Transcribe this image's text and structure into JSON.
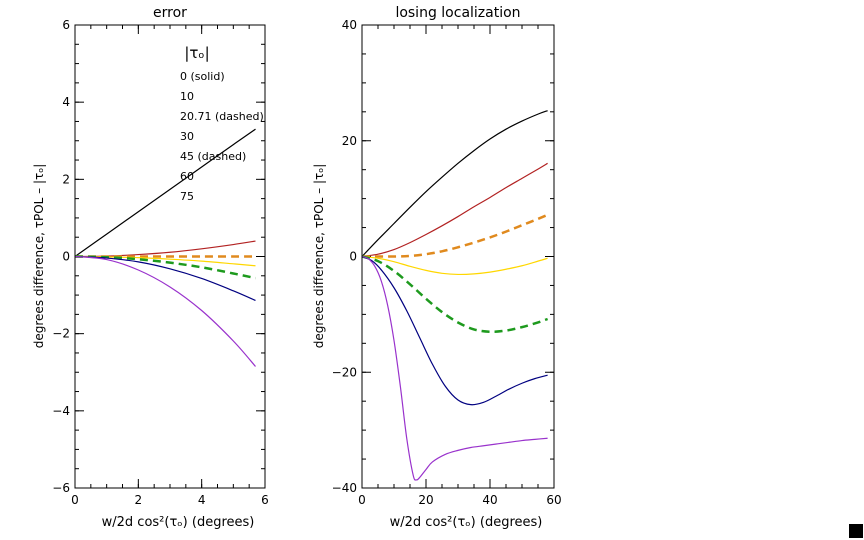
{
  "chart_data": [
    {
      "type": "line",
      "title": "error",
      "xlabel": "w/2d cos²(τₒ) (degrees)",
      "ylabel": "degrees difference, τPOL – |τₒ|",
      "xlim": [
        0,
        6
      ],
      "ylim": [
        -6,
        6
      ],
      "xticks": [
        "0",
        "2",
        "4",
        "6"
      ],
      "yticks": [
        "6",
        "4",
        "2",
        "0",
        "−2",
        "−4",
        "−6"
      ],
      "legend_title": "|τₒ|",
      "series": [
        {
          "name": "0 (solid)",
          "color": "#000000",
          "dashed": false,
          "x": [
            0,
            1,
            2,
            3,
            4,
            5,
            5.7
          ],
          "y": [
            0,
            0.58,
            1.16,
            1.74,
            2.32,
            2.9,
            3.3
          ]
        },
        {
          "name": "10",
          "color": "#b22222",
          "dashed": false,
          "x": [
            0,
            1,
            2,
            3,
            4,
            5,
            5.7
          ],
          "y": [
            0,
            0.01,
            0.05,
            0.11,
            0.2,
            0.31,
            0.4
          ]
        },
        {
          "name": "20.71 (dashed)",
          "color": "#e08a1e",
          "dashed": true,
          "x": [
            0,
            1,
            2,
            3,
            4,
            5,
            5.7
          ],
          "y": [
            0,
            0,
            0,
            0,
            0,
            0,
            0
          ]
        },
        {
          "name": "30",
          "color": "#ffd700",
          "dashed": false,
          "x": [
            0,
            1,
            2,
            3,
            4,
            5,
            5.7
          ],
          "y": [
            0,
            -0.01,
            -0.03,
            -0.07,
            -0.12,
            -0.19,
            -0.24
          ]
        },
        {
          "name": "45 (dashed)",
          "color": "#1e9a1e",
          "dashed": true,
          "x": [
            0,
            1,
            2,
            3,
            4,
            5,
            5.7
          ],
          "y": [
            0,
            -0.02,
            -0.07,
            -0.16,
            -0.28,
            -0.44,
            -0.56
          ]
        },
        {
          "name": "60",
          "color": "#000080",
          "dashed": false,
          "x": [
            0,
            1,
            2,
            3,
            4,
            5,
            5.7
          ],
          "y": [
            0,
            -0.04,
            -0.14,
            -0.32,
            -0.57,
            -0.89,
            -1.14
          ]
        },
        {
          "name": "75",
          "color": "#9932cc",
          "dashed": false,
          "x": [
            0,
            1,
            2,
            3,
            4,
            5,
            5.7
          ],
          "y": [
            0,
            -0.08,
            -0.35,
            -0.79,
            -1.4,
            -2.19,
            -2.85
          ]
        }
      ]
    },
    {
      "type": "line",
      "title": "losing localization",
      "xlabel": "w/2d cos²(τₒ) (degrees)",
      "ylabel": "degrees difference, τPOL – |τₒ|",
      "xlim": [
        0,
        60
      ],
      "ylim": [
        -40,
        40
      ],
      "xticks": [
        "0",
        "20",
        "40",
        "60"
      ],
      "yticks": [
        "40",
        "20",
        "0",
        "−20",
        "−40"
      ],
      "series": [
        {
          "name": "0 (solid)",
          "color": "#000000",
          "dashed": false,
          "x": [
            0,
            5,
            10,
            15,
            20,
            25,
            30,
            35,
            40,
            45,
            50,
            55,
            58
          ],
          "y": [
            0,
            2.9,
            5.7,
            8.5,
            11.2,
            13.7,
            16.1,
            18.3,
            20.3,
            22,
            23.4,
            24.6,
            25.2
          ]
        },
        {
          "name": "10",
          "color": "#b22222",
          "dashed": false,
          "x": [
            0,
            5,
            10,
            15,
            20,
            25,
            30,
            35,
            40,
            45,
            50,
            55,
            58
          ],
          "y": [
            0,
            0.4,
            1.2,
            2.4,
            3.8,
            5.3,
            6.9,
            8.6,
            10.2,
            11.9,
            13.5,
            15.1,
            16.1
          ]
        },
        {
          "name": "20.71 (dashed)",
          "color": "#e08a1e",
          "dashed": true,
          "x": [
            0,
            10,
            15,
            20,
            25,
            30,
            35,
            40,
            45,
            50,
            55,
            58
          ],
          "y": [
            0,
            0,
            0.1,
            0.4,
            0.9,
            1.6,
            2.4,
            3.3,
            4.3,
            5.4,
            6.5,
            7.2
          ]
        },
        {
          "name": "30",
          "color": "#ffd700",
          "dashed": false,
          "x": [
            0,
            5,
            10,
            15,
            20,
            25,
            30,
            35,
            40,
            45,
            50,
            55,
            58
          ],
          "y": [
            0,
            -0.3,
            -0.9,
            -1.7,
            -2.4,
            -2.9,
            -3.1,
            -3.0,
            -2.7,
            -2.2,
            -1.6,
            -0.8,
            -0.3
          ]
        },
        {
          "name": "45 (dashed)",
          "color": "#1e9a1e",
          "dashed": true,
          "x": [
            0,
            5,
            10,
            15,
            20,
            25,
            30,
            35,
            40,
            45,
            50,
            55,
            58
          ],
          "y": [
            0,
            -0.8,
            -2.5,
            -4.8,
            -7.3,
            -9.6,
            -11.4,
            -12.6,
            -13.0,
            -12.8,
            -12.2,
            -11.4,
            -10.8
          ]
        },
        {
          "name": "60",
          "color": "#000080",
          "dashed": false,
          "x": [
            0,
            3,
            6,
            10,
            14,
            18,
            22,
            26,
            30,
            34,
            38,
            42,
            46,
            50,
            54,
            58
          ],
          "y": [
            0,
            -0.7,
            -2.3,
            -5.4,
            -9.4,
            -14,
            -18.6,
            -22.4,
            -24.8,
            -25.6,
            -25.2,
            -24.1,
            -22.9,
            -21.9,
            -21.1,
            -20.5
          ]
        },
        {
          "name": "75",
          "color": "#9932cc",
          "dashed": false,
          "x": [
            0,
            2,
            4,
            6,
            8,
            10,
            12,
            14,
            16,
            17,
            18,
            20,
            22,
            26,
            30,
            34,
            38,
            42,
            46,
            50,
            54,
            58
          ],
          "y": [
            0,
            -0.4,
            -1.7,
            -4.2,
            -8.4,
            -14.5,
            -22.5,
            -31.5,
            -37.8,
            -38.6,
            -38.2,
            -36.8,
            -35.5,
            -34.2,
            -33.5,
            -33.0,
            -32.7,
            -32.4,
            -32.1,
            -31.8,
            -31.6,
            -31.4
          ]
        }
      ]
    }
  ]
}
